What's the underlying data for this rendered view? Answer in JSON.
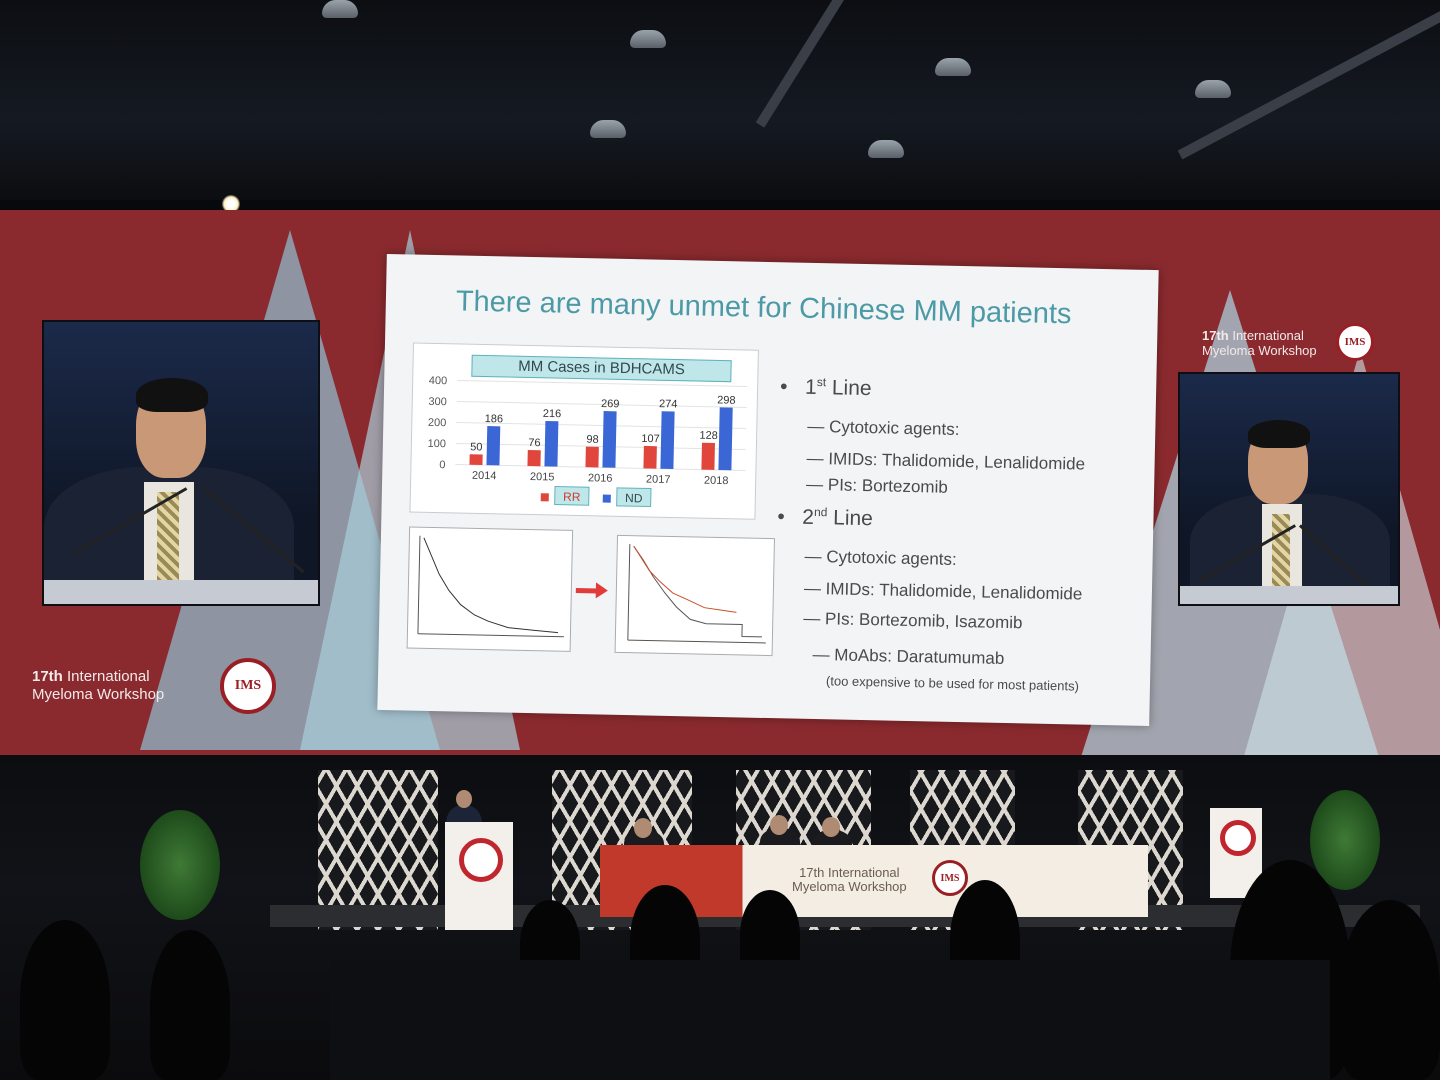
{
  "event": {
    "name_line1_bold": "17th",
    "name_line1_rest": "International",
    "name_line2": "Myeloma Workshop",
    "seal_text": "IMS"
  },
  "slide": {
    "title": "There are many unmet for Chinese MM patients",
    "chart": {
      "title": "MM Cases in BDHCAMS",
      "legend_rr": "RR",
      "legend_nd": "ND"
    },
    "bullets": {
      "first_line_num": "1",
      "first_line_sup": "st",
      "first_line_text": "Line",
      "first_items": [
        "— Cytotoxic agents:",
        "— IMIDs: Thalidomide, Lenalidomide",
        "— PIs: Bortezomib"
      ],
      "second_line_num": "2",
      "second_line_sup": "nd",
      "second_line_text": "Line",
      "second_items": [
        "— Cytotoxic agents:",
        "— IMIDs: Thalidomide, Lenalidomide",
        "— PIs: Bortezomib, Isazomib",
        "— MoAbs: Daratumumab"
      ],
      "note": "(too expensive to be used for most patients)"
    }
  },
  "stage": {
    "desk_line1": "17th International",
    "desk_line2": "Myeloma Workshop",
    "podium_logo": "IMS"
  },
  "chart_data": {
    "type": "bar",
    "title": "MM Cases in BDHCAMS",
    "categories": [
      "2014",
      "2015",
      "2016",
      "2017",
      "2018"
    ],
    "series": [
      {
        "name": "RR",
        "values": [
          50,
          76,
          98,
          107,
          128
        ],
        "color": "#e0463c"
      },
      {
        "name": "ND",
        "values": [
          186,
          216,
          269,
          274,
          298
        ],
        "color": "#3a66d6"
      }
    ],
    "yticks": [
      "400",
      "300",
      "200",
      "100",
      "0"
    ],
    "ylim": [
      0,
      400
    ],
    "legend_position": "bottom"
  }
}
